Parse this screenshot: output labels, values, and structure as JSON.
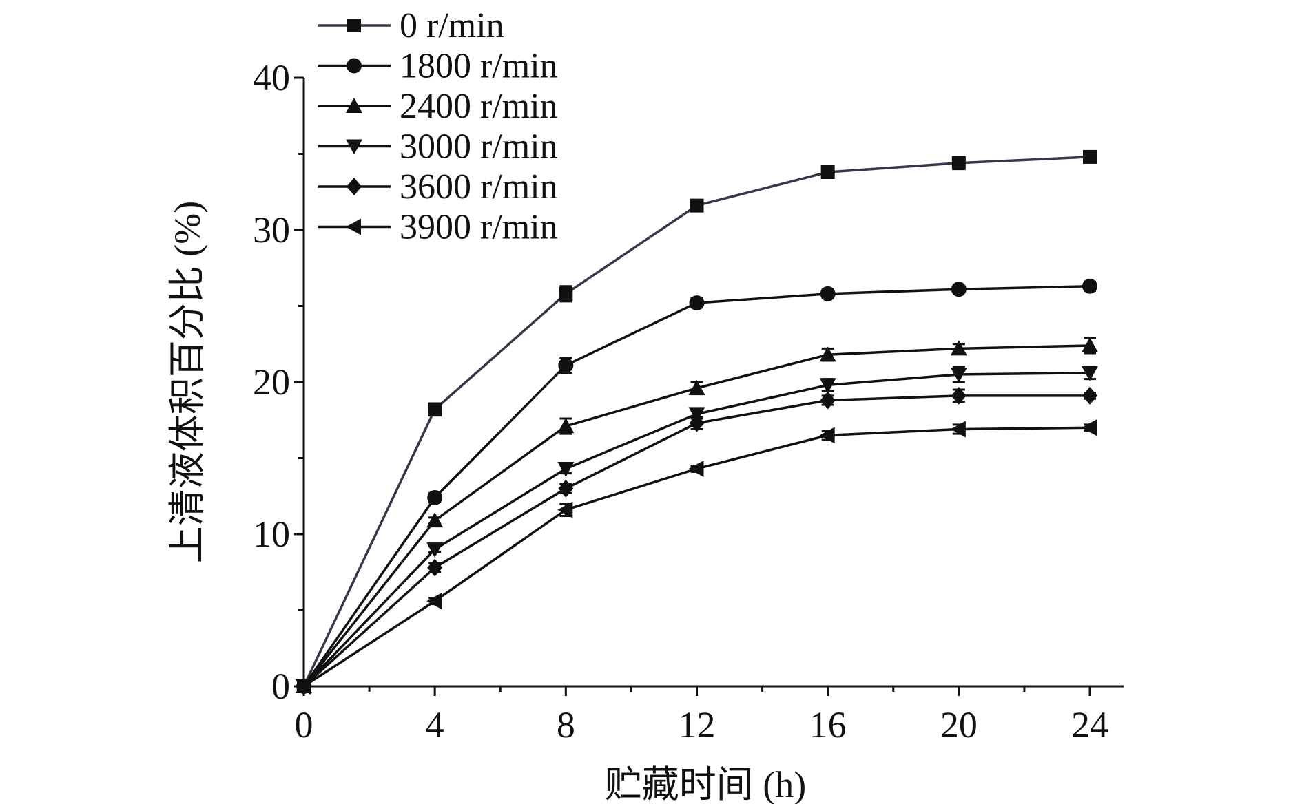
{
  "chart_data": {
    "type": "line",
    "xlabel": "贮藏时间 (h)",
    "ylabel": "上清液体积百分比 (%)",
    "xlim": [
      0,
      24
    ],
    "ylim": [
      0,
      40
    ],
    "xticks": [
      "0",
      "4",
      "8",
      "12",
      "16",
      "20",
      "24"
    ],
    "yticks": [
      "0",
      "10",
      "20",
      "30",
      "40"
    ],
    "grid": false,
    "legend_position": "top-left",
    "x": [
      0,
      4,
      8,
      12,
      16,
      20,
      24
    ],
    "series": [
      {
        "name": "0 r/min",
        "marker": "square",
        "color": "#3a3548",
        "values": [
          0,
          18.2,
          25.8,
          31.6,
          33.8,
          34.4,
          34.8
        ],
        "errors": [
          0,
          0.4,
          0.5,
          0.3,
          0.3,
          0.4,
          0.3
        ]
      },
      {
        "name": "1800 r/min",
        "marker": "circle",
        "color": "#111111",
        "values": [
          0,
          12.4,
          21.1,
          25.2,
          25.8,
          26.1,
          26.3
        ],
        "errors": [
          0,
          0.3,
          0.5,
          0.3,
          0.3,
          0.2,
          0.3
        ]
      },
      {
        "name": "2400 r/min",
        "marker": "triangle-up",
        "color": "#111111",
        "values": [
          0,
          10.9,
          17.1,
          19.6,
          21.8,
          22.2,
          22.4
        ],
        "errors": [
          0,
          0.2,
          0.5,
          0.4,
          0.4,
          0.3,
          0.5
        ]
      },
      {
        "name": "3000 r/min",
        "marker": "triangle-down",
        "color": "#111111",
        "values": [
          0,
          9.0,
          14.3,
          17.9,
          19.8,
          20.5,
          20.6
        ],
        "errors": [
          0,
          0.2,
          0.3,
          0.3,
          0.4,
          0.5,
          0.4
        ]
      },
      {
        "name": "3600 r/min",
        "marker": "diamond",
        "color": "#111111",
        "values": [
          0,
          7.8,
          13.0,
          17.3,
          18.8,
          19.1,
          19.1
        ],
        "errors": [
          0,
          0.3,
          0.3,
          0.4,
          0.3,
          0.4,
          0.2
        ]
      },
      {
        "name": "3900 r/min",
        "marker": "triangle-left",
        "color": "#111111",
        "values": [
          0,
          5.6,
          11.6,
          14.3,
          16.5,
          16.9,
          17.0
        ],
        "errors": [
          0,
          0.2,
          0.4,
          0.2,
          0.3,
          0.3,
          0.2
        ]
      }
    ]
  }
}
